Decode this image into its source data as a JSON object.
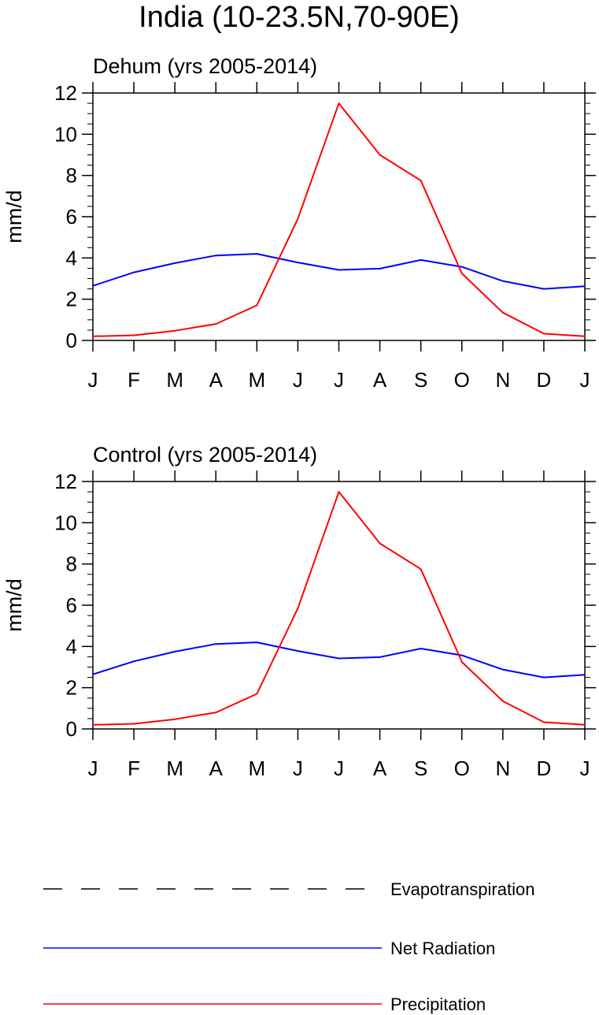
{
  "title": "India (10-23.5N,70-90E)",
  "legend": [
    {
      "name": "Evapotranspiration",
      "color": "#000000",
      "dashed": true
    },
    {
      "name": "Net Radiation",
      "color": "#0000ff",
      "dashed": false
    },
    {
      "name": "Precipitation",
      "color": "#ff0000",
      "dashed": false
    }
  ],
  "chart_data": [
    {
      "type": "line",
      "title": "Dehum (yrs 2005-2014)",
      "ylabel": "mm/d",
      "xlabel": "",
      "ylim": [
        0,
        12
      ],
      "yticks": [
        0,
        2,
        4,
        6,
        8,
        10,
        12
      ],
      "categories": [
        "J",
        "F",
        "M",
        "A",
        "M",
        "J",
        "J",
        "A",
        "S",
        "O",
        "N",
        "D",
        "J"
      ],
      "series": [
        {
          "name": "Net Radiation",
          "color": "#0000ff",
          "values": [
            2.65,
            3.3,
            3.75,
            4.12,
            4.2,
            3.78,
            3.42,
            3.48,
            3.9,
            3.57,
            2.88,
            2.5,
            2.63
          ]
        },
        {
          "name": "Precipitation",
          "color": "#ff0000",
          "values": [
            0.2,
            0.25,
            0.47,
            0.8,
            1.7,
            5.9,
            11.5,
            9.0,
            7.75,
            3.25,
            1.35,
            0.33,
            0.2
          ]
        }
      ]
    },
    {
      "type": "line",
      "title": "Control (yrs 2005-2014)",
      "ylabel": "mm/d",
      "xlabel": "",
      "ylim": [
        0,
        12
      ],
      "yticks": [
        0,
        2,
        4,
        6,
        8,
        10,
        12
      ],
      "categories": [
        "J",
        "F",
        "M",
        "A",
        "M",
        "J",
        "J",
        "A",
        "S",
        "O",
        "N",
        "D",
        "J"
      ],
      "series": [
        {
          "name": "Net Radiation",
          "color": "#0000ff",
          "values": [
            2.65,
            3.28,
            3.75,
            4.12,
            4.2,
            3.78,
            3.42,
            3.48,
            3.9,
            3.57,
            2.88,
            2.5,
            2.63
          ]
        },
        {
          "name": "Precipitation",
          "color": "#ff0000",
          "values": [
            0.2,
            0.25,
            0.47,
            0.8,
            1.7,
            5.85,
            11.5,
            9.0,
            7.75,
            3.25,
            1.35,
            0.33,
            0.2
          ]
        }
      ]
    }
  ]
}
